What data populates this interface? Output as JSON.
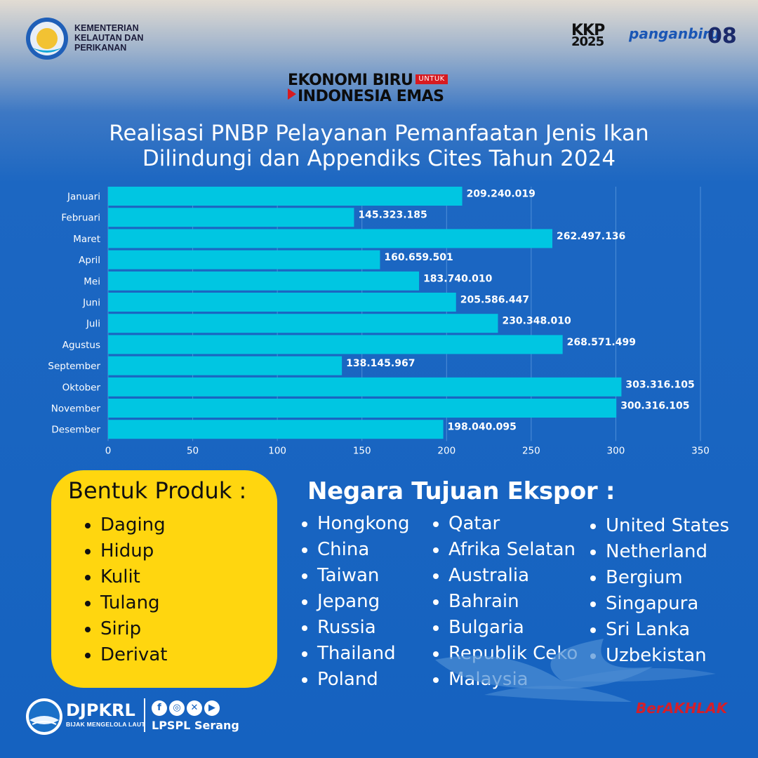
{
  "header": {
    "ministry": [
      "KEMENTERIAN",
      "KELAUTAN DAN",
      "PERIKANAN"
    ],
    "logos": {
      "kkp_line1": "KKP",
      "kkp_line2": "2025",
      "panganbiru": "panganbiru",
      "logo08": "08"
    },
    "tagline_line1": "EKONOMI BIRU",
    "tagline_untuk": "UNTUK",
    "tagline_line2": "INDONESIA EMAS"
  },
  "chart_data": {
    "type": "bar",
    "orientation": "horizontal",
    "title": [
      "Realisasi PNBP Pelayanan Pemanfaatan Jenis Ikan",
      "Dilindungi dan Appendiks Cites Tahun 2024"
    ],
    "categories": [
      "Januari",
      "Februari",
      "Maret",
      "April",
      "Mei",
      "Juni",
      "Juli",
      "Agustus",
      "September",
      "Oktober",
      "November",
      "Desember"
    ],
    "values": [
      209240019,
      145323185,
      262497136,
      160659501,
      183740010,
      205586447,
      230348010,
      268571499,
      138145967,
      303316105,
      300316105,
      198040095
    ],
    "value_labels": [
      "209.240.019",
      "145.323.185",
      "262.497.136",
      "160.659.501",
      "183.740.010",
      "205.586.447",
      "230.348.010",
      "268.571.499",
      "138.145.967",
      "303.316.105",
      "300.316.105",
      "198.040.095"
    ],
    "xticks": [
      "0",
      "50",
      "100",
      "150",
      "200",
      "250",
      "300",
      "350"
    ],
    "xlim": [
      0,
      350000000
    ],
    "grid": true,
    "colors": {
      "bar": "#00c6e2",
      "text": "#ffffff"
    }
  },
  "produk": {
    "title": "Bentuk Produk :",
    "items": [
      "Daging",
      "Hidup",
      "Kulit",
      "Tulang",
      "Sirip",
      "Derivat"
    ]
  },
  "negara": {
    "title": "Negara Tujuan Ekspor :",
    "col1": [
      "Hongkong",
      "China",
      "Taiwan",
      "Jepang",
      "Russia",
      "Thailand",
      "Poland"
    ],
    "col2": [
      "Qatar",
      "Afrika Selatan",
      "Australia",
      "Bahrain",
      "Bulgaria",
      "Republik Ceko",
      "Malaysia"
    ],
    "col3": [
      "United States",
      "Netherland",
      "Bergium",
      "Singapura",
      "Sri Lanka",
      "Uzbekistan"
    ]
  },
  "footer": {
    "djpkrl": "DJPKRL",
    "djpkrl_tag": "BIJAK MENGELOLA LAUT",
    "social_icons": [
      "facebook-icon",
      "instagram-icon",
      "x-icon",
      "youtube-icon"
    ],
    "lpspl": "LPSPL Serang",
    "berakhlak": "BerAKHLAK"
  }
}
